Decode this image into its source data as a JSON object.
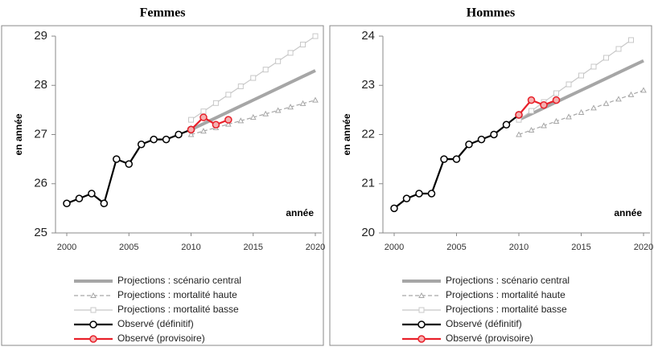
{
  "chart_data": [
    {
      "type": "line",
      "title": "Femmes",
      "ylabel": "en année",
      "annotation": "année",
      "xlim": [
        2000,
        2020
      ],
      "xticks": [
        2000,
        2005,
        2010,
        2015,
        2020
      ],
      "ylim": [
        25,
        29
      ],
      "yticks": [
        25,
        26,
        27,
        28,
        29
      ],
      "grid": false,
      "series": [
        {
          "name": "Projections : scénario central",
          "color": "#a6a6a6",
          "style": "thick",
          "x": [
            2010,
            2011,
            2012,
            2013,
            2014,
            2015,
            2016,
            2017,
            2018,
            2019,
            2020
          ],
          "values": [
            27.1,
            27.22,
            27.34,
            27.46,
            27.58,
            27.7,
            27.82,
            27.94,
            28.06,
            28.18,
            28.3
          ]
        },
        {
          "name": "Projections : mortalité haute",
          "color": "#a6a6a6",
          "style": "dashed",
          "x": [
            2010,
            2011,
            2012,
            2013,
            2014,
            2015,
            2016,
            2017,
            2018,
            2019,
            2020
          ],
          "values": [
            27.0,
            27.07,
            27.14,
            27.21,
            27.28,
            27.35,
            27.42,
            27.49,
            27.56,
            27.63,
            27.7
          ]
        },
        {
          "name": "Projections : mortalité basse",
          "color": "#c8c8c8",
          "style": "light",
          "x": [
            2010,
            2011,
            2012,
            2013,
            2014,
            2015,
            2016,
            2017,
            2018,
            2019,
            2020
          ],
          "values": [
            27.3,
            27.47,
            27.64,
            27.81,
            27.98,
            28.15,
            28.32,
            28.49,
            28.66,
            28.83,
            29.0
          ]
        },
        {
          "name": "Observé (définitif)",
          "color": "#000000",
          "style": "observed",
          "x": [
            2000,
            2001,
            2002,
            2003,
            2004,
            2005,
            2006,
            2007,
            2008,
            2009,
            2010
          ],
          "values": [
            25.6,
            25.7,
            25.8,
            25.6,
            26.5,
            26.4,
            26.8,
            26.9,
            26.9,
            27.0,
            27.1
          ]
        },
        {
          "name": "Observé (provisoire)",
          "color": "#e8202a",
          "style": "provisional",
          "x": [
            2010,
            2011,
            2012,
            2013
          ],
          "values": [
            27.1,
            27.35,
            27.2,
            27.3
          ]
        }
      ]
    },
    {
      "type": "line",
      "title": "Hommes",
      "ylabel": "en année",
      "annotation": "année",
      "xlim": [
        2000,
        2020
      ],
      "xticks": [
        2000,
        2005,
        2010,
        2015,
        2020
      ],
      "ylim": [
        20,
        24
      ],
      "yticks": [
        20,
        21,
        22,
        23,
        24
      ],
      "grid": false,
      "series": [
        {
          "name": "Projections : scénario central",
          "color": "#a6a6a6",
          "style": "thick",
          "x": [
            2010,
            2011,
            2012,
            2013,
            2014,
            2015,
            2016,
            2017,
            2018,
            2019,
            2020
          ],
          "values": [
            22.3,
            22.42,
            22.54,
            22.66,
            22.78,
            22.9,
            23.02,
            23.14,
            23.26,
            23.38,
            23.5
          ]
        },
        {
          "name": "Projections : mortalité haute",
          "color": "#a6a6a6",
          "style": "dashed",
          "x": [
            2010,
            2011,
            2012,
            2013,
            2014,
            2015,
            2016,
            2017,
            2018,
            2019,
            2020
          ],
          "values": [
            22.0,
            22.09,
            22.18,
            22.27,
            22.36,
            22.45,
            22.54,
            22.63,
            22.72,
            22.81,
            22.9
          ]
        },
        {
          "name": "Projections : mortalité basse",
          "color": "#c8c8c8",
          "style": "light",
          "x": [
            2010,
            2011,
            2012,
            2013,
            2014,
            2015,
            2016,
            2017,
            2018,
            2019
          ],
          "values": [
            22.3,
            22.48,
            22.66,
            22.84,
            23.02,
            23.2,
            23.38,
            23.56,
            23.74,
            23.92
          ]
        },
        {
          "name": "Observé (définitif)",
          "color": "#000000",
          "style": "observed",
          "x": [
            2000,
            2001,
            2002,
            2003,
            2004,
            2005,
            2006,
            2007,
            2008,
            2009,
            2010
          ],
          "values": [
            20.5,
            20.7,
            20.8,
            20.8,
            21.5,
            21.5,
            21.8,
            21.9,
            22.0,
            22.2,
            22.4
          ]
        },
        {
          "name": "Observé (provisoire)",
          "color": "#e8202a",
          "style": "provisional",
          "x": [
            2010,
            2011,
            2012,
            2013
          ],
          "values": [
            22.4,
            22.7,
            22.6,
            22.7
          ]
        }
      ]
    }
  ]
}
